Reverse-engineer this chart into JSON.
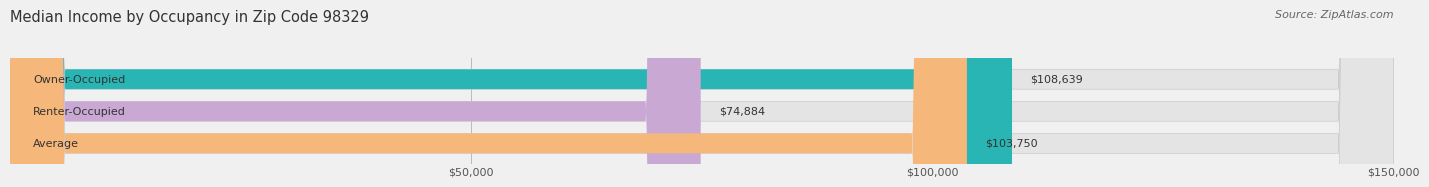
{
  "title": "Median Income by Occupancy in Zip Code 98329",
  "source": "Source: ZipAtlas.com",
  "categories": [
    "Owner-Occupied",
    "Renter-Occupied",
    "Average"
  ],
  "values": [
    108639,
    74884,
    103750
  ],
  "bar_colors": [
    "#2ab5b5",
    "#c9a8d4",
    "#f5b87a"
  ],
  "bar_labels": [
    "$108,639",
    "$74,884",
    "$103,750"
  ],
  "xlim": [
    0,
    150000
  ],
  "xticks": [
    0,
    50000,
    100000,
    150000
  ],
  "xticklabels": [
    "",
    "$50,000",
    "$100,000",
    "$150,000"
  ],
  "background_color": "#f0f0f0",
  "bar_background_color": "#e4e4e4",
  "title_fontsize": 10.5,
  "source_fontsize": 8,
  "label_fontsize": 8,
  "tick_fontsize": 8,
  "bar_height": 0.62
}
